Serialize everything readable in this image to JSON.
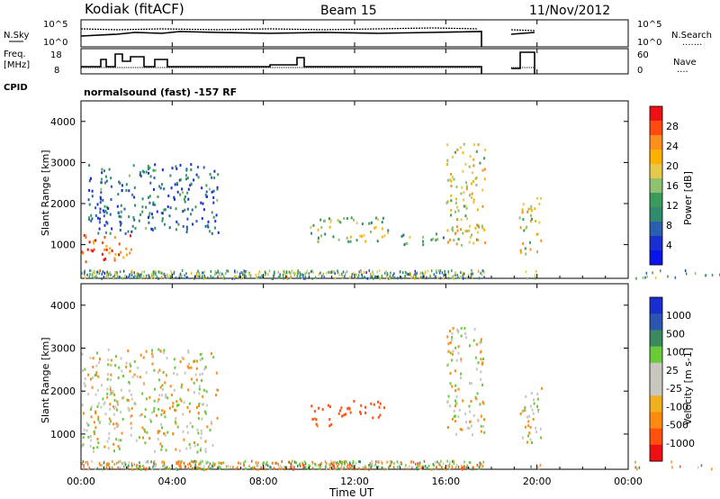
{
  "header": {
    "station": "Kodiak (fitACF)",
    "beam": "Beam 15",
    "date": "11/Nov/2012"
  },
  "noise_panel": {
    "left_label": "N.Sky",
    "left_ticks": [
      "10^5",
      "10^0"
    ],
    "right_ticks": [
      "10^5",
      "10^0"
    ],
    "right_label": "N.Search",
    "right_line_sample": "......."
  },
  "freq_panel": {
    "left_label_1": "Freq.",
    "left_label_2": "[MHz]",
    "left_ticks": [
      "18",
      "8"
    ],
    "right_ticks": [
      "60",
      "0"
    ],
    "right_label": "Nave",
    "right_line_sample": "...."
  },
  "cpid": {
    "label": "CPID",
    "value": "normalsound (fast) -157 RF"
  },
  "power_panel": {
    "ylabel": "Slant Range [km]",
    "colorbar_title": "Power [dB]",
    "colorbar_labels": [
      "28",
      "24",
      "20",
      "16",
      "12",
      "8",
      "4"
    ],
    "colorbar_colors": [
      "#ee1111",
      "#ff4a10",
      "#ff8f1c",
      "#ffb000",
      "#e6c84a",
      "#8fc270",
      "#3c9a5a",
      "#2e8b6e",
      "#2a5fb0",
      "#1a2fd0",
      "#0a14e8"
    ]
  },
  "velocity_panel": {
    "ylabel": "Slant Range [km]",
    "colorbar_title": "Velocity [m s-1]",
    "colorbar_labels": [
      "1000",
      "500",
      "100",
      "25",
      "-25",
      "-100",
      "-500",
      "-1000"
    ],
    "colorbar_colors": [
      "#1a2ed0",
      "#2a55b0",
      "#3a8a60",
      "#6acb3a",
      "#c8c8c0",
      "#c8c8c0",
      "#f0b020",
      "#ff8a10",
      "#ff5010",
      "#ee1010"
    ]
  },
  "xaxis": {
    "label": "Time UT",
    "ticks": [
      "00:00",
      "04:00",
      "08:00",
      "12:00",
      "16:00",
      "20:00",
      "00:00"
    ]
  },
  "chart_data": {
    "type": "heatmap",
    "title": "Kodiak (fitACF)",
    "subtitle": "Beam 15",
    "xlabel": "Time UT",
    "ylabel": "Slant Range [km]",
    "xlim": [
      0,
      24
    ],
    "ylim": [
      180,
      4500
    ],
    "yticks": [
      1000,
      2000,
      3000,
      4000
    ],
    "data_gaps_hours": [
      [
        17.7,
        19.2
      ],
      [
        20.2,
        24
      ]
    ],
    "power_regions": [
      {
        "t": [
          0.0,
          2.2
        ],
        "range": [
          600,
          1300
        ],
        "power_db": 28
      },
      {
        "t": [
          0.3,
          6.0
        ],
        "range": [
          1300,
          3000
        ],
        "power_db": 8
      },
      {
        "t": [
          10.0,
          13.5
        ],
        "range": [
          1100,
          1700
        ],
        "power_db": 16
      },
      {
        "t": [
          14.0,
          16.0
        ],
        "range": [
          1000,
          1300
        ],
        "power_db": 12
      },
      {
        "t": [
          16.0,
          17.7
        ],
        "range": [
          1000,
          3500
        ],
        "power_db": 20
      },
      {
        "t": [
          19.2,
          20.2
        ],
        "range": [
          800,
          2200
        ],
        "power_db": 20
      }
    ],
    "velocity_regions": [
      {
        "t": [
          0.0,
          6.0
        ],
        "range": [
          600,
          3000
        ],
        "velocity": 0
      },
      {
        "t": [
          11.5,
          13.5
        ],
        "range": [
          1400,
          1800
        ],
        "velocity": -300
      },
      {
        "t": [
          10.0,
          11.5
        ],
        "range": [
          1200,
          1700
        ],
        "velocity": -150
      },
      {
        "t": [
          16.0,
          17.7
        ],
        "range": [
          1000,
          3500
        ],
        "velocity": 0
      },
      {
        "t": [
          19.2,
          20.2
        ],
        "range": [
          800,
          2200
        ],
        "velocity": 0
      }
    ]
  }
}
